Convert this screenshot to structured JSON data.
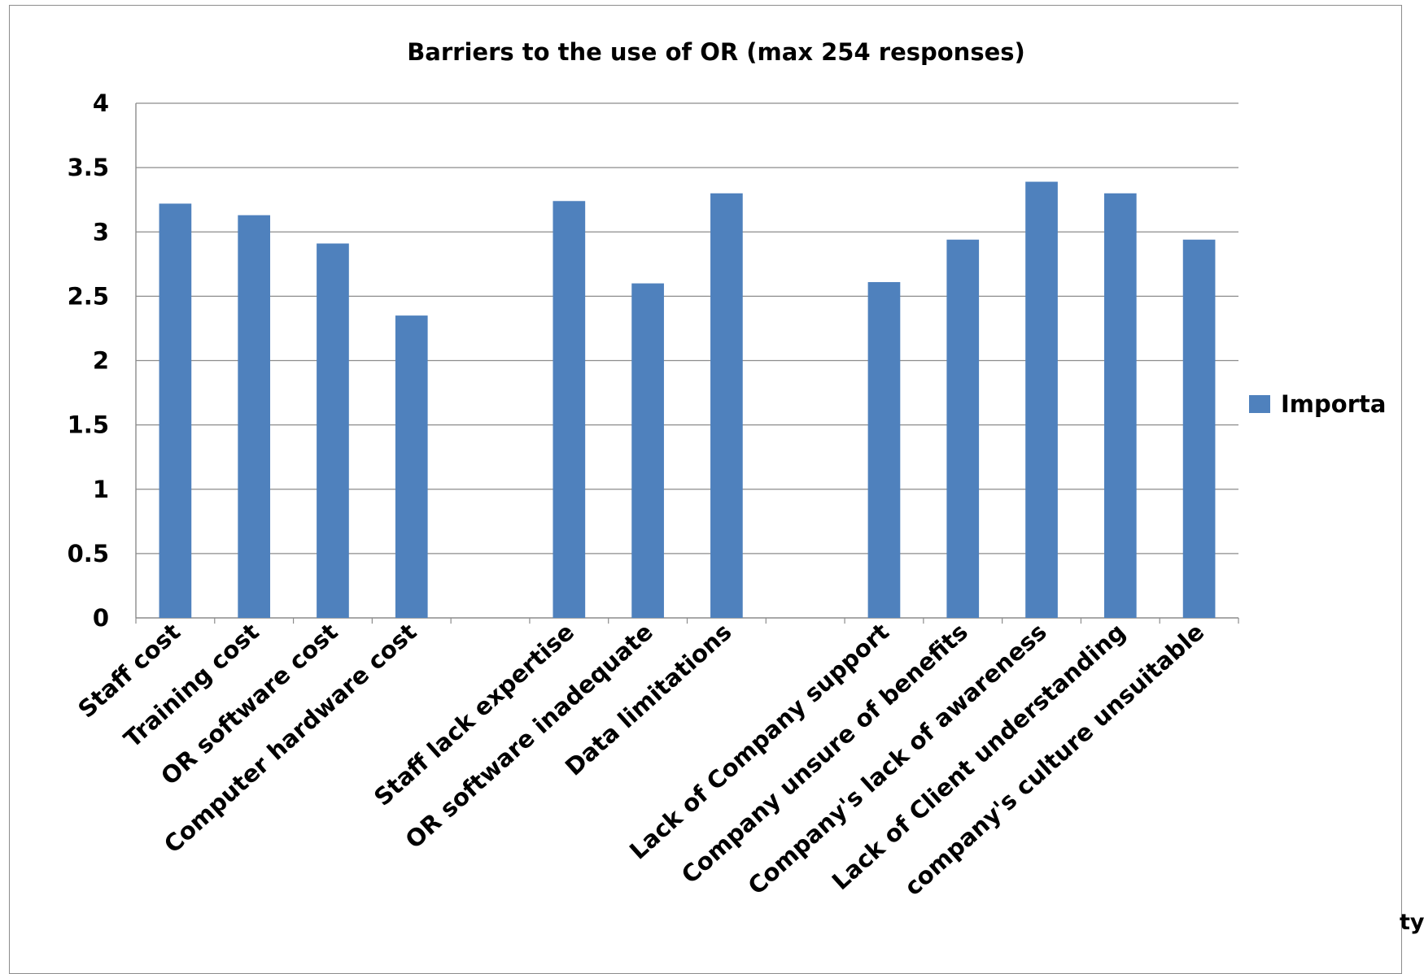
{
  "chart_data": {
    "type": "bar",
    "title": "Barriers to the use of OR (max 254 responses)",
    "xlabel": "",
    "ylabel": "",
    "ylim": [
      0,
      4
    ],
    "yticks": [
      "0",
      "0.5",
      "1",
      "1.5",
      "2",
      "2.5",
      "3",
      "3.5",
      "4"
    ],
    "grid": true,
    "legend_position": "right",
    "categories": [
      "Staff cost",
      "Training cost",
      "OR software cost",
      "Computer hardware cost",
      "",
      "Staff lack expertise",
      "OR software inadequate",
      "Data limitations",
      "",
      "Lack of Company  support",
      "Company unsure of benefits",
      "Company's lack of awareness",
      "Lack of Client understanding",
      "company's culture unsuitable"
    ],
    "series": [
      {
        "name": "Importa",
        "color": "#4f81bd",
        "values": [
          3.22,
          3.13,
          2.91,
          2.35,
          null,
          3.24,
          2.6,
          3.3,
          null,
          2.61,
          2.94,
          3.39,
          3.3,
          2.94
        ]
      }
    ]
  },
  "corner_fragment": "ty"
}
